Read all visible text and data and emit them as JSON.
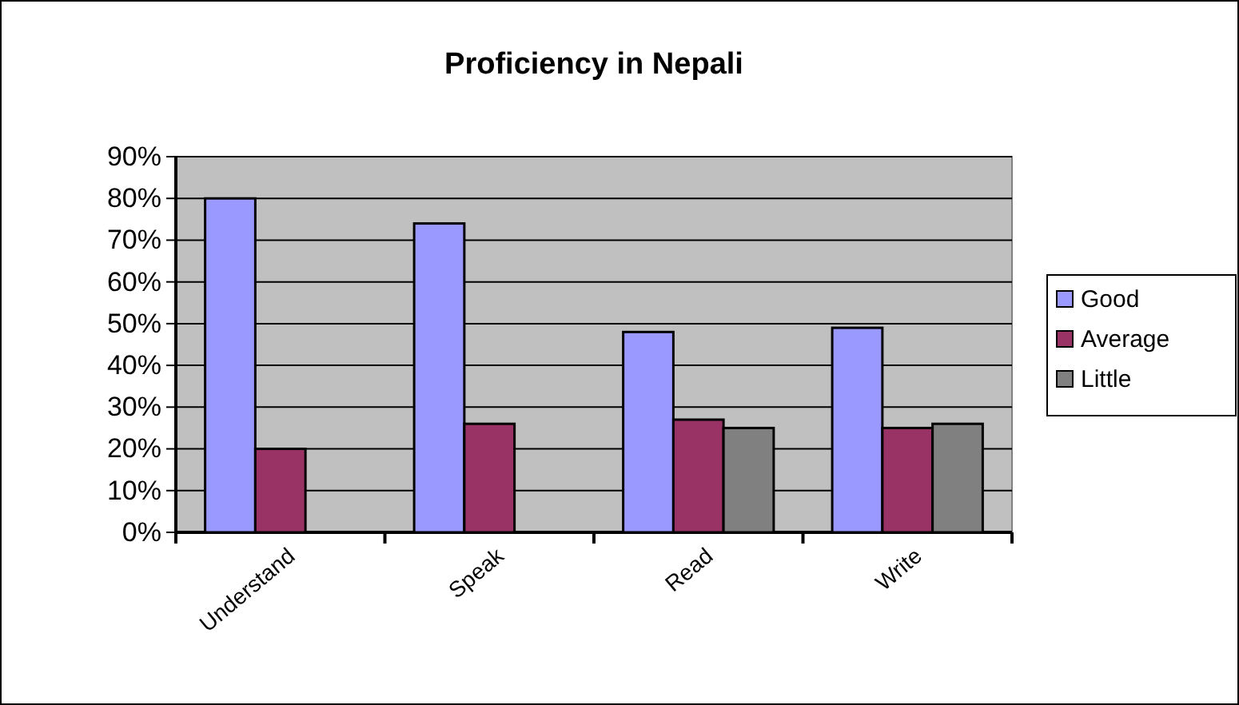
{
  "chart_data": {
    "type": "bar",
    "title": "Proficiency in Nepali",
    "categories": [
      "Understand",
      "Speak",
      "Read",
      "Write"
    ],
    "series": [
      {
        "name": "Good",
        "color": "#9999ff",
        "values": [
          80,
          74,
          48,
          49
        ]
      },
      {
        "name": "Average",
        "color": "#993366",
        "values": [
          20,
          26,
          27,
          25
        ]
      },
      {
        "name": "Little",
        "color": "#808080",
        "values": [
          null,
          null,
          25,
          26
        ]
      }
    ],
    "ylim": [
      0,
      90
    ],
    "yticks": [
      {
        "value": 0,
        "label": "0%"
      },
      {
        "value": 10,
        "label": "10%"
      },
      {
        "value": 20,
        "label": "20%"
      },
      {
        "value": 30,
        "label": "30%"
      },
      {
        "value": 40,
        "label": "40%"
      },
      {
        "value": 50,
        "label": "50%"
      },
      {
        "value": 60,
        "label": "60%"
      },
      {
        "value": 70,
        "label": "70%"
      },
      {
        "value": 80,
        "label": "80%"
      },
      {
        "value": 90,
        "label": "90%"
      }
    ],
    "grid": "y",
    "legend": "right"
  }
}
